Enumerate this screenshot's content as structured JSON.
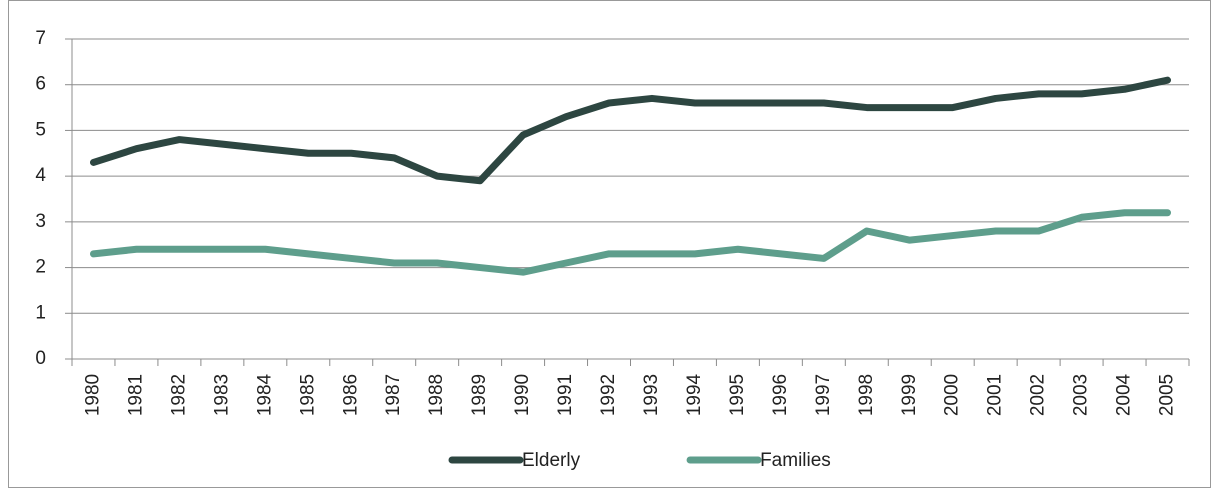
{
  "chart_data": {
    "type": "line",
    "categories": [
      "1980",
      "1981",
      "1982",
      "1983",
      "1984",
      "1985",
      "1986",
      "1987",
      "1988",
      "1989",
      "1990",
      "1991",
      "1992",
      "1993",
      "1994",
      "1995",
      "1996",
      "1997",
      "1998",
      "1999",
      "2000",
      "2001",
      "2002",
      "2003",
      "2004",
      "2005"
    ],
    "series": [
      {
        "name": "Elderly",
        "color": "#2d4641",
        "values": [
          4.3,
          4.6,
          4.8,
          4.7,
          4.6,
          4.5,
          4.5,
          4.4,
          4.0,
          3.9,
          4.9,
          5.3,
          5.6,
          5.7,
          5.6,
          5.6,
          5.6,
          5.6,
          5.5,
          5.5,
          5.5,
          5.7,
          5.8,
          5.8,
          5.9,
          6.1
        ]
      },
      {
        "name": "Families",
        "color": "#5e9e8c",
        "values": [
          2.3,
          2.4,
          2.4,
          2.4,
          2.4,
          2.3,
          2.2,
          2.1,
          2.1,
          2.0,
          1.9,
          2.1,
          2.3,
          2.3,
          2.3,
          2.4,
          2.3,
          2.2,
          2.8,
          2.6,
          2.7,
          2.8,
          2.8,
          3.1,
          3.2,
          3.2
        ]
      }
    ],
    "ylim": [
      0,
      7
    ],
    "yticks": [
      0,
      1,
      2,
      3,
      4,
      5,
      6,
      7
    ],
    "grid": true,
    "legend": "bottom"
  }
}
